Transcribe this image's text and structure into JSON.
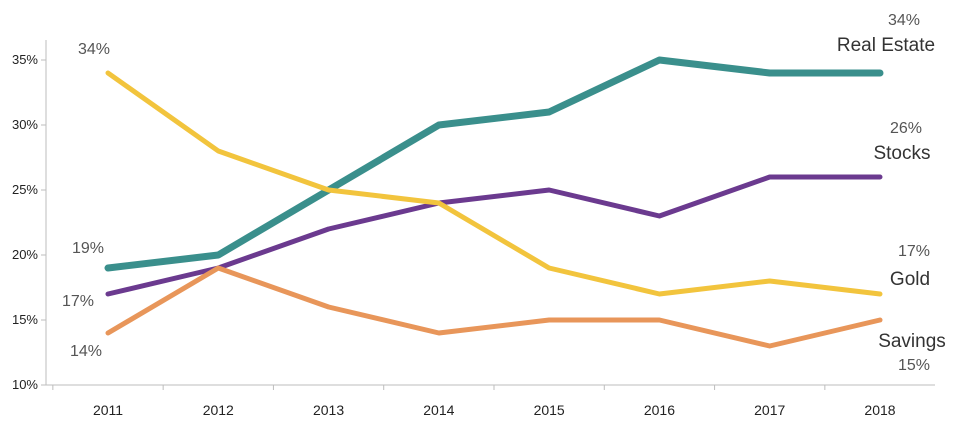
{
  "chart_data": {
    "type": "line",
    "title": "",
    "xlabel": "",
    "ylabel": "",
    "x": [
      "2011",
      "2012",
      "2013",
      "2014",
      "2015",
      "2016",
      "2017",
      "2018"
    ],
    "y_ticks": [
      "10%",
      "15%",
      "20%",
      "25%",
      "30%",
      "35%"
    ],
    "ylim": [
      10,
      37
    ],
    "grid": false,
    "series": [
      {
        "name": "Real Estate",
        "color": "#3a8f8c",
        "values": [
          19,
          20,
          25,
          30,
          31,
          35,
          34,
          34
        ],
        "start_label": "19%",
        "end_label": "34%"
      },
      {
        "name": "Stocks",
        "color": "#6b3a8f",
        "values": [
          17,
          19,
          22,
          24,
          25,
          23,
          26,
          26
        ],
        "start_label": "17%",
        "end_label": "26%"
      },
      {
        "name": "Gold",
        "color": "#f2c43d",
        "values": [
          34,
          28,
          25,
          24,
          19,
          17,
          18,
          17
        ],
        "start_label": "34%",
        "end_label": "17%"
      },
      {
        "name": "Savings",
        "color": "#e8965a",
        "values": [
          14,
          19,
          16,
          14,
          15,
          15,
          13,
          15
        ],
        "start_label": "14%",
        "end_label": "15%"
      }
    ]
  }
}
